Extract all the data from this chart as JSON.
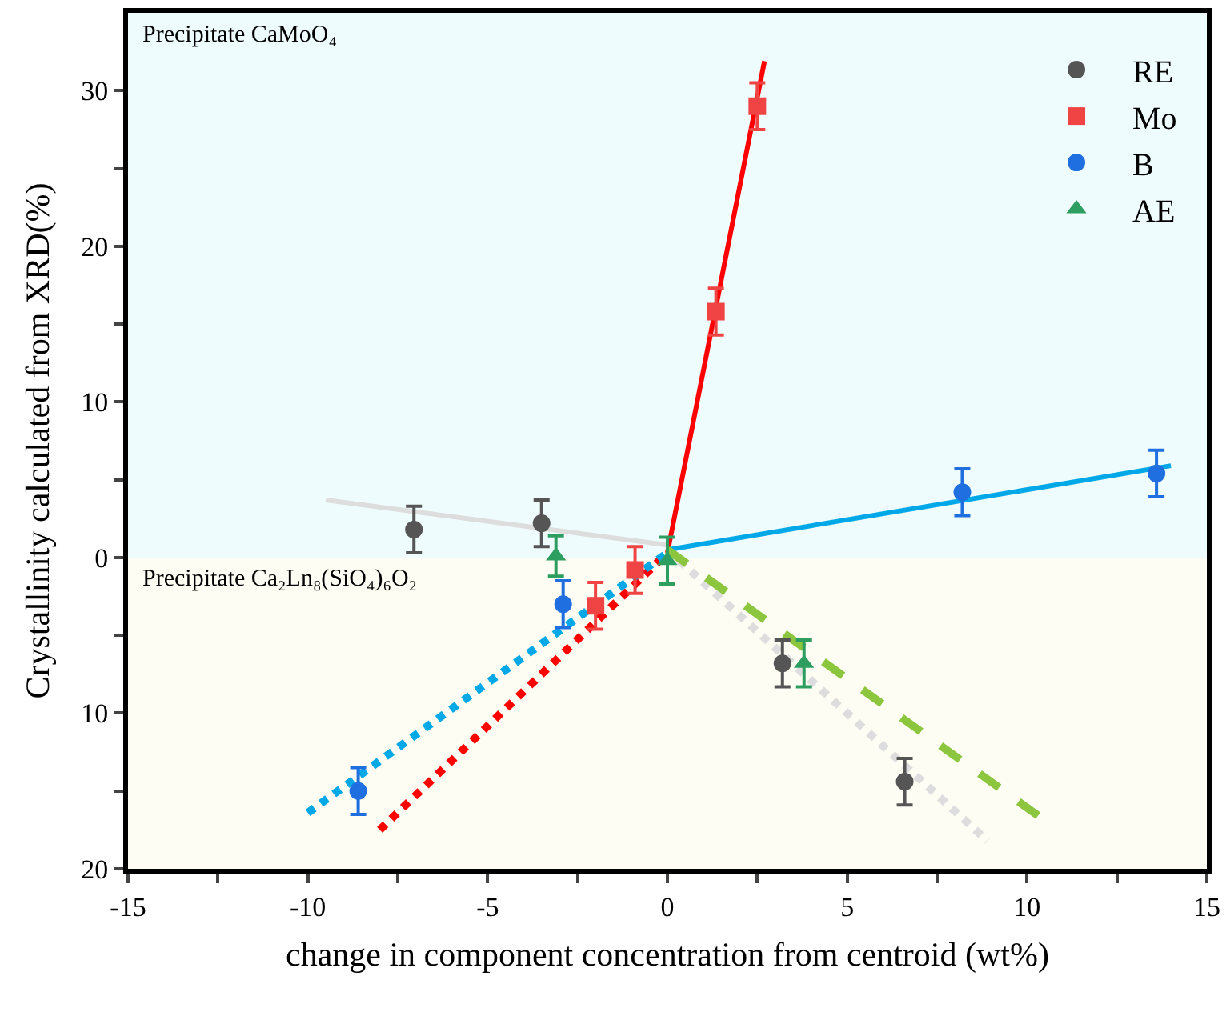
{
  "chart_data": {
    "type": "scatter",
    "xlabel": "change in component concentration from centroid (wt%)",
    "ylabel": "Crystallinity calculated from XRD(%)",
    "xlim": [
      -15,
      15
    ],
    "xticks": [
      -15,
      {
        "value": -12.5,
        "label": null
      },
      -10,
      {
        "value": -7.5,
        "label": null
      },
      -5,
      {
        "value": -2.5,
        "label": null
      },
      0,
      {
        "value": 2.5,
        "label": null
      },
      5,
      {
        "value": 7.5,
        "label": null
      },
      10,
      {
        "value": 12.5,
        "label": null
      },
      15
    ],
    "ylim": [
      -20,
      35
    ],
    "yticks": [
      {
        "value": -20,
        "label": "20"
      },
      {
        "value": -15,
        "label": null
      },
      {
        "value": -10,
        "label": "10"
      },
      {
        "value": -5,
        "label": null
      },
      0,
      {
        "value": 5,
        "label": null
      },
      10,
      {
        "value": 15,
        "label": null
      },
      20,
      {
        "value": 25,
        "label": null
      },
      30
    ],
    "grid": false,
    "legend": "top right",
    "bands": [
      {
        "axis": "y",
        "from": 0,
        "to": 35,
        "label": "Precipitate CaMoO₄",
        "color": "#effcfd"
      },
      {
        "axis": "y",
        "from": -20,
        "to": 0,
        "label": "Precipitate Ca₂Ln₈(SiO₄)₆O₂",
        "color": "#fefdf4"
      }
    ],
    "series": [
      {
        "type": "line",
        "color": "#dddddd",
        "line_style": "solid",
        "marker": "none",
        "x": [
          -9.5,
          0
        ],
        "values": [
          3.7,
          0.8
        ]
      },
      {
        "type": "line",
        "color": "#dddddd",
        "line_style": "dotted",
        "marker": "none",
        "x": [
          0,
          8.9
        ],
        "values": [
          0.5,
          -18.2
        ]
      },
      {
        "type": "line",
        "color": "#ff0000",
        "line_style": "solid",
        "marker": "none",
        "x": [
          0,
          2.7
        ],
        "values": [
          0.3,
          31.9
        ]
      },
      {
        "type": "line",
        "color": "#ff0000",
        "line_style": "dotted",
        "marker": "none",
        "x": [
          -8,
          0
        ],
        "values": [
          -17.5,
          0.3
        ]
      },
      {
        "type": "line",
        "color": "#00a8e8",
        "line_style": "solid",
        "marker": "none",
        "x": [
          0,
          14
        ],
        "values": [
          0.5,
          5.9
        ]
      },
      {
        "type": "line",
        "color": "#00a8e8",
        "line_style": "dotted",
        "marker": "none",
        "x": [
          -10,
          0
        ],
        "values": [
          -16.4,
          0.3
        ]
      },
      {
        "type": "line",
        "color": "#8cc63f",
        "line_style": "dashed",
        "marker": "none",
        "x": [
          0,
          10.5
        ],
        "values": [
          0.5,
          -16.9
        ]
      },
      {
        "name": "RE",
        "color": "#555555",
        "marker": "circle",
        "x": [
          -7.05,
          -3.5,
          3.2,
          6.6
        ],
        "values": [
          1.8,
          2.2,
          -6.8,
          -14.4
        ],
        "errors": [
          1.5,
          1.5,
          1.5,
          1.5
        ]
      },
      {
        "name": "Mo",
        "color": "#f04444",
        "marker": "square",
        "x": [
          1.35,
          2.5,
          -0.9,
          -2.0
        ],
        "values": [
          15.8,
          29.0,
          -0.8,
          -3.1
        ],
        "errors": [
          1.5,
          1.5,
          1.5,
          1.5
        ]
      },
      {
        "name": "B",
        "color": "#1f6fe0",
        "marker": "circle",
        "x": [
          -2.9,
          -8.6,
          8.2,
          13.6
        ],
        "values": [
          -3.0,
          -15.0,
          4.2,
          5.4
        ],
        "errors": [
          1.5,
          1.5,
          1.5,
          1.5
        ]
      },
      {
        "name": "AE",
        "color": "#2e9e60",
        "marker": "triangle",
        "x": [
          -3.1,
          0,
          3.8
        ],
        "values": [
          0.1,
          -0.2,
          -6.8
        ],
        "errors": [
          1.3,
          1.5,
          1.5
        ]
      }
    ]
  }
}
